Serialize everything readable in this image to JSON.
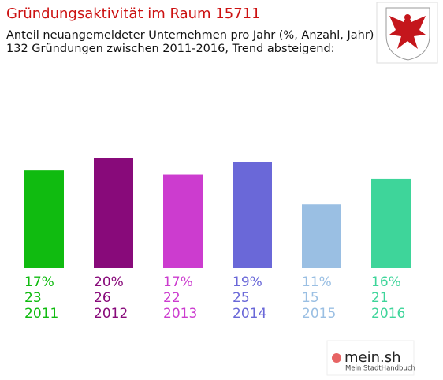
{
  "chart_data": {
    "type": "bar",
    "title": "Gründungsaktivität im Raum 15711",
    "subtitle": [
      "Anteil neuangemeldeter Unternehmen pro Jahr (%, Anzahl, Jahr)",
      "132 Gründungen zwischen 2011-2016, Trend absteigend:"
    ],
    "categories": [
      "2011",
      "2012",
      "2013",
      "2014",
      "2015",
      "2016"
    ],
    "values": [
      23,
      26,
      22,
      25,
      15,
      21
    ],
    "percentage_labels": [
      "17%",
      "20%",
      "17%",
      "19%",
      "11%",
      "16%"
    ],
    "colors": [
      "#10bb10",
      "#880a7a",
      "#cc3ccf",
      "#6a68d8",
      "#9abfe3",
      "#3ed59a"
    ]
  },
  "brand": {
    "name": "mein.sh",
    "tagline": "Mein StadtHandbuch"
  }
}
